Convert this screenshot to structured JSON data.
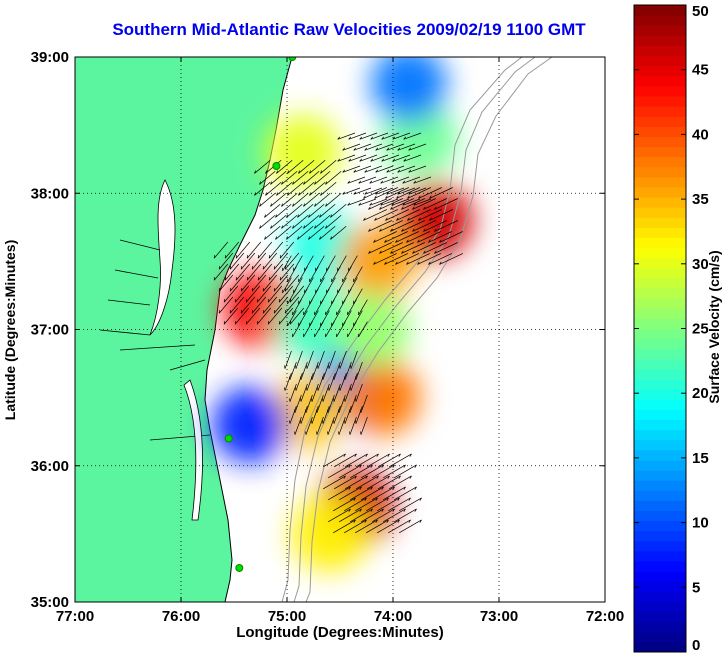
{
  "chart_data": {
    "type": "heatmap",
    "title": "Southern Mid-Atlantic Raw Velocities 2009/02/19 1100 GMT",
    "xlabel": "Longitude (Degrees:Minutes)",
    "ylabel": "Latitude (Degrees:Minutes)",
    "colorbar_label": "Surface Velocity (cm/s)",
    "x_range": [
      -77,
      -72
    ],
    "y_range": [
      35,
      39
    ],
    "x_tick_labels": [
      "77:00",
      "76:00",
      "75:00",
      "74:00",
      "73:00",
      "72:00"
    ],
    "y_tick_labels": [
      "35:00",
      "36:00",
      "37:00",
      "38:00",
      "39:00"
    ],
    "colorbar_range": [
      0,
      50
    ],
    "colorbar_ticks": [
      "0",
      "5",
      "10",
      "15",
      "20",
      "25",
      "30",
      "35",
      "40",
      "45",
      "50"
    ],
    "colormap": "jet",
    "grid": "dotted",
    "colors": {
      "title": "#0000ee",
      "land": "#5cf59f",
      "coastline": "#000000",
      "bathymetry": "#9a9a9a"
    },
    "coverage_regions": [
      {
        "lon": -74.85,
        "lat": 38.3,
        "speed": 30
      },
      {
        "lon": -73.6,
        "lat": 37.8,
        "speed": 46
      },
      {
        "lon": -73.75,
        "lat": 38.4,
        "speed": 24
      },
      {
        "lon": -73.85,
        "lat": 38.8,
        "speed": 12
      },
      {
        "lon": -74.65,
        "lat": 37.6,
        "speed": 20
      },
      {
        "lon": -74.15,
        "lat": 37.5,
        "speed": 36
      },
      {
        "lon": -75.25,
        "lat": 37.15,
        "speed": 44
      },
      {
        "lon": -74.75,
        "lat": 37.05,
        "speed": 22
      },
      {
        "lon": -74.45,
        "lat": 36.55,
        "speed": 12
      },
      {
        "lon": -74.8,
        "lat": 36.4,
        "speed": 34
      },
      {
        "lon": -75.35,
        "lat": 36.3,
        "speed": 8
      },
      {
        "lon": -74.1,
        "lat": 36.5,
        "speed": 38
      },
      {
        "lon": -74.35,
        "lat": 35.7,
        "speed": 46
      },
      {
        "lon": -74.6,
        "lat": 35.5,
        "speed": 32
      },
      {
        "lon": -74.2,
        "lat": 37.0,
        "speed": 26
      }
    ],
    "flow_regions": [
      {
        "lon": -74.0,
        "lat": 38.2,
        "direction_deg": 250,
        "speed": 24
      },
      {
        "lon": -73.7,
        "lat": 37.8,
        "direction_deg": 245,
        "speed": 45
      },
      {
        "lon": -74.8,
        "lat": 38.0,
        "direction_deg": 230,
        "speed": 30
      },
      {
        "lon": -75.2,
        "lat": 37.4,
        "direction_deg": 220,
        "speed": 32
      },
      {
        "lon": -74.6,
        "lat": 37.3,
        "direction_deg": 210,
        "speed": 22
      },
      {
        "lon": -74.6,
        "lat": 36.6,
        "direction_deg": 200,
        "speed": 25
      },
      {
        "lon": -74.3,
        "lat": 35.75,
        "direction_deg": 60,
        "speed": 45
      }
    ],
    "stations": [
      {
        "lon": -74.95,
        "lat": 39.0
      },
      {
        "lon": -75.1,
        "lat": 38.2
      },
      {
        "lon": -75.55,
        "lat": 36.2
      },
      {
        "lon": -75.45,
        "lat": 35.25
      }
    ]
  }
}
